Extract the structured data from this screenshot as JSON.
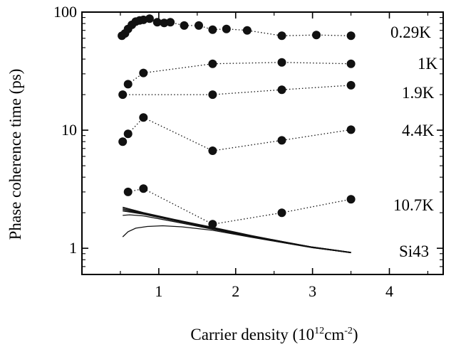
{
  "chart_data": {
    "type": "scatter",
    "title": "",
    "xlabel": "Carrier density (10^12cm^-2)",
    "xlabel_parts": {
      "base": "Carrier density (10",
      "sup1": "12",
      "mid": "cm",
      "sup2": "-2",
      "end": ")"
    },
    "ylabel": "Phase coherence time (ps)",
    "xlim": [
      0,
      4.7
    ],
    "ylim": [
      0.6,
      100
    ],
    "yscale": "log",
    "x_ticks": [
      1,
      2,
      3,
      4
    ],
    "x_tick_labels": [
      "1",
      "2",
      "3",
      "4"
    ],
    "y_ticks": [
      1,
      10,
      100
    ],
    "y_tick_labels": [
      "1",
      "10",
      "100"
    ],
    "grid": false,
    "legend": "none",
    "series": [
      {
        "name": "0.29K",
        "style": "markers-dotted",
        "x": [
          0.52,
          0.56,
          0.6,
          0.65,
          0.7,
          0.75,
          0.8,
          0.88,
          0.98,
          1.07,
          1.15,
          1.33,
          1.52,
          1.7,
          1.88,
          2.15,
          2.6,
          3.05,
          3.5
        ],
        "y": [
          63,
          66,
          72,
          78,
          83,
          85,
          86,
          88,
          82,
          81,
          82,
          77,
          77,
          71,
          72,
          70,
          63,
          64,
          63
        ]
      },
      {
        "name": "1K",
        "style": "markers-dotted",
        "x": [
          0.6,
          0.8,
          1.7,
          2.6,
          3.5
        ],
        "y": [
          24.5,
          30.5,
          36.5,
          37.5,
          36.5
        ]
      },
      {
        "name": "1.9K",
        "style": "markers-dotted",
        "x": [
          0.53,
          1.7,
          2.6,
          3.5
        ],
        "y": [
          20,
          20,
          22,
          24
        ]
      },
      {
        "name": "4.4K",
        "style": "markers-dotted",
        "x": [
          0.53,
          0.6,
          0.8,
          1.7,
          2.6,
          3.5
        ],
        "y": [
          8,
          9.3,
          12.8,
          6.7,
          8.2,
          10.1
        ]
      },
      {
        "name": "10.7K",
        "style": "markers-dotted",
        "x": [
          0.6,
          0.8,
          1.7,
          2.6,
          3.5
        ],
        "y": [
          3.0,
          3.2,
          1.6,
          2.0,
          2.6
        ]
      },
      {
        "name": "Si43",
        "style": "solid-lines",
        "curves": [
          {
            "x": [
              0.53,
              0.8,
              1.2,
              1.7,
              2.2,
              2.6,
              3.0,
              3.5
            ],
            "y": [
              2.22,
              2.0,
              1.75,
              1.5,
              1.28,
              1.14,
              1.02,
              0.92
            ]
          },
          {
            "x": [
              0.53,
              0.8,
              1.2,
              1.7,
              2.2,
              2.6,
              3.0,
              3.5
            ],
            "y": [
              2.15,
              1.97,
              1.74,
              1.49,
              1.27,
              1.14,
              1.02,
              0.92
            ]
          },
          {
            "x": [
              0.53,
              0.8,
              1.2,
              1.7,
              2.2,
              2.6,
              3.0,
              3.5
            ],
            "y": [
              2.08,
              1.95,
              1.72,
              1.47,
              1.26,
              1.13,
              1.02,
              0.92
            ]
          },
          {
            "x": [
              0.53,
              0.62,
              0.8,
              1.2,
              1.7,
              2.2,
              2.6,
              3.0,
              3.5
            ],
            "y": [
              1.9,
              1.92,
              1.88,
              1.68,
              1.45,
              1.25,
              1.12,
              1.01,
              0.92
            ]
          },
          {
            "x": [
              0.53,
              0.6,
              0.7,
              0.85,
              1.05,
              1.3,
              1.7,
              2.2,
              2.6,
              3.0,
              3.5
            ],
            "y": [
              1.25,
              1.38,
              1.48,
              1.53,
              1.55,
              1.52,
              1.42,
              1.24,
              1.12,
              1.01,
              0.92
            ]
          }
        ]
      }
    ],
    "annotations": [
      "0.29K",
      "1K",
      "1.9K",
      "4.4K",
      "10.7K",
      "Si43"
    ],
    "colors": {
      "axis": "#000000",
      "marker": "#111111",
      "line": "#111111"
    }
  }
}
